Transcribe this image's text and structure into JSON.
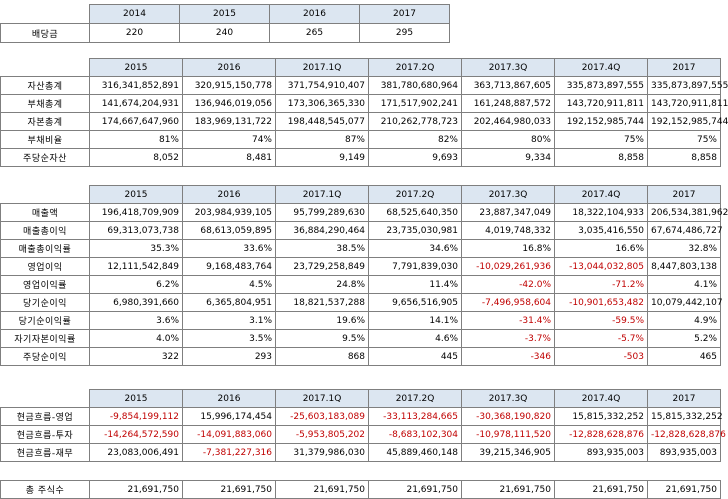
{
  "dividend": {
    "label": "배당금",
    "years": [
      "2014",
      "2015",
      "2016",
      "2017"
    ],
    "values": [
      "220",
      "240",
      "265",
      "295"
    ]
  },
  "balance_sheet": {
    "headers": [
      "2015",
      "2016",
      "2017.1Q",
      "2017.2Q",
      "2017.3Q",
      "2017.4Q",
      "2017"
    ],
    "rows": [
      {
        "label": "자산총계",
        "values": [
          "316,341,852,891",
          "320,915,150,778",
          "371,754,910,407",
          "381,780,680,964",
          "363,713,867,605",
          "335,873,897,555",
          "335,873,897,555"
        ]
      },
      {
        "label": "부채총계",
        "values": [
          "141,674,204,931",
          "136,946,019,056",
          "173,306,365,330",
          "171,517,902,241",
          "161,248,887,572",
          "143,720,911,811",
          "143,720,911,811"
        ]
      },
      {
        "label": "자본총계",
        "values": [
          "174,667,647,960",
          "183,969,131,722",
          "198,448,545,077",
          "210,262,778,723",
          "202,464,980,033",
          "192,152,985,744",
          "192,152,985,744"
        ]
      },
      {
        "label": "부채비율",
        "values": [
          "81%",
          "74%",
          "87%",
          "82%",
          "80%",
          "75%",
          "75%"
        ]
      },
      {
        "label": "주당순자산",
        "values": [
          "8,052",
          "8,481",
          "9,149",
          "9,693",
          "9,334",
          "8,858",
          "8,858"
        ]
      }
    ]
  },
  "income_statement": {
    "headers": [
      "2015",
      "2016",
      "2017.1Q",
      "2017.2Q",
      "2017.3Q",
      "2017.4Q",
      "2017"
    ],
    "rows": [
      {
        "label": "매출액",
        "values": [
          "196,418,709,909",
          "203,984,939,105",
          "95,799,289,630",
          "68,525,640,350",
          "23,887,347,049",
          "18,322,104,933",
          "206,534,381,962"
        ]
      },
      {
        "label": "매출총이익",
        "values": [
          "69,313,073,738",
          "68,613,059,895",
          "36,884,290,464",
          "23,735,030,981",
          "4,019,748,332",
          "3,035,416,550",
          "67,674,486,727"
        ]
      },
      {
        "label": "매출총이익률",
        "values": [
          "35.3%",
          "33.6%",
          "38.5%",
          "34.6%",
          "16.8%",
          "16.6%",
          "32.8%"
        ]
      },
      {
        "label": "영업이익",
        "values": [
          "12,111,542,849",
          "9,168,483,764",
          "23,729,258,849",
          "7,791,839,030",
          "-10,029,261,936",
          "-13,044,032,805",
          "8,447,803,138"
        ]
      },
      {
        "label": "영업이익률",
        "values": [
          "6.2%",
          "4.5%",
          "24.8%",
          "11.4%",
          "-42.0%",
          "-71.2%",
          "4.1%"
        ]
      },
      {
        "label": "당기순이익",
        "values": [
          "6,980,391,660",
          "6,365,804,951",
          "18,821,537,288",
          "9,656,516,905",
          "-7,496,958,604",
          "-10,901,653,482",
          "10,079,442,107"
        ]
      },
      {
        "label": "당기순이익률",
        "values": [
          "3.6%",
          "3.1%",
          "19.6%",
          "14.1%",
          "-31.4%",
          "-59.5%",
          "4.9%"
        ]
      },
      {
        "label": "자기자본이익률",
        "values": [
          "4.0%",
          "3.5%",
          "9.5%",
          "4.6%",
          "-3.7%",
          "-5.7%",
          "5.2%"
        ]
      },
      {
        "label": "주당순이익",
        "values": [
          "322",
          "293",
          "868",
          "445",
          "-346",
          "-503",
          "465"
        ]
      }
    ]
  },
  "cash_flow": {
    "headers": [
      "2015",
      "2016",
      "2017.1Q",
      "2017.2Q",
      "2017.3Q",
      "2017.4Q",
      "2017"
    ],
    "rows": [
      {
        "label": "현금흐름-영업",
        "values": [
          "-9,854,199,112",
          "15,996,174,454",
          "-25,603,183,089",
          "-33,113,284,665",
          "-30,368,190,820",
          "15,815,332,252",
          "15,815,332,252"
        ]
      },
      {
        "label": "현금흐름-투자",
        "values": [
          "-14,264,572,590",
          "-14,091,883,060",
          "-5,953,805,202",
          "-8,683,102,304",
          "-10,978,111,520",
          "-12,828,628,876",
          "-12,828,628,876"
        ]
      },
      {
        "label": "현금흐름-재무",
        "values": [
          "23,083,006,491",
          "-7,381,227,316",
          "31,379,986,030",
          "45,889,460,148",
          "39,215,346,905",
          "893,935,003",
          "893,935,003"
        ]
      }
    ]
  },
  "shares": {
    "label": "총 주식수",
    "values": [
      "21,691,750",
      "21,691,750",
      "21,691,750",
      "21,691,750",
      "21,691,750",
      "21,691,750",
      "21,691,750"
    ]
  },
  "colors": {
    "header_fill": "#dce6f1",
    "negative_text": "#c00000",
    "grid": "#7f7f7f"
  }
}
